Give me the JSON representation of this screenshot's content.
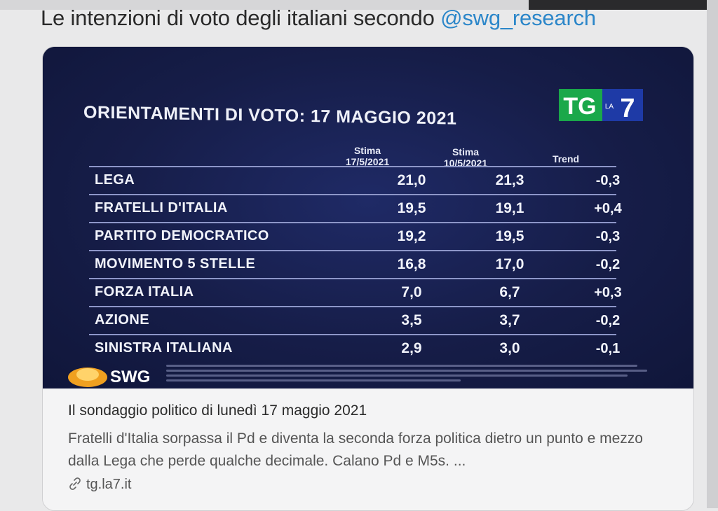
{
  "tweet": {
    "text": "Le intenzioni di voto degli italiani secondo ",
    "mention": "@swg_research"
  },
  "poll": {
    "title": "ORIENTAMENTI DI VOTO: 17 MAGGIO 2021",
    "logo_text": "TG",
    "logo_sub": "LA",
    "logo_num": "7",
    "col1_label": "Stima",
    "col1_date": "17/5/2021",
    "col2_label": "Stima",
    "col2_date": "10/5/2021",
    "col3_label": "Trend",
    "rows": [
      {
        "party": "LEGA",
        "v1": "21,0",
        "v2": "21,3",
        "trend": "-0,3"
      },
      {
        "party": "FRATELLI D'ITALIA",
        "v1": "19,5",
        "v2": "19,1",
        "trend": "+0,4"
      },
      {
        "party": "PARTITO DEMOCRATICO",
        "v1": "19,2",
        "v2": "19,5",
        "trend": "-0,3"
      },
      {
        "party": "MOVIMENTO 5 STELLE",
        "v1": "16,8",
        "v2": "17,0",
        "trend": "-0,2"
      },
      {
        "party": "FORZA ITALIA",
        "v1": "7,0",
        "v2": "6,7",
        "trend": "+0,3"
      },
      {
        "party": "AZIONE",
        "v1": "3,5",
        "v2": "3,7",
        "trend": "-0,2"
      },
      {
        "party": "SINISTRA ITALIANA",
        "v1": "2,9",
        "v2": "3,0",
        "trend": "-0,1"
      }
    ],
    "source": "SWG"
  },
  "card": {
    "title": "Il sondaggio politico di lunedì 17 maggio 2021",
    "description": "Fratelli d'Italia sorpassa il Pd e diventa la seconda forza politica dietro un punto e mezzo dalla Lega che perde qualche decimale. Calano Pd e M5s. ...",
    "link": "tg.la7.it",
    "link_icon": "link-icon"
  },
  "colors": {
    "background": "#e9e9ea",
    "mention": "#2b86c9",
    "poll_bg": "#141a3e",
    "tg_green": "#1aa84a"
  }
}
